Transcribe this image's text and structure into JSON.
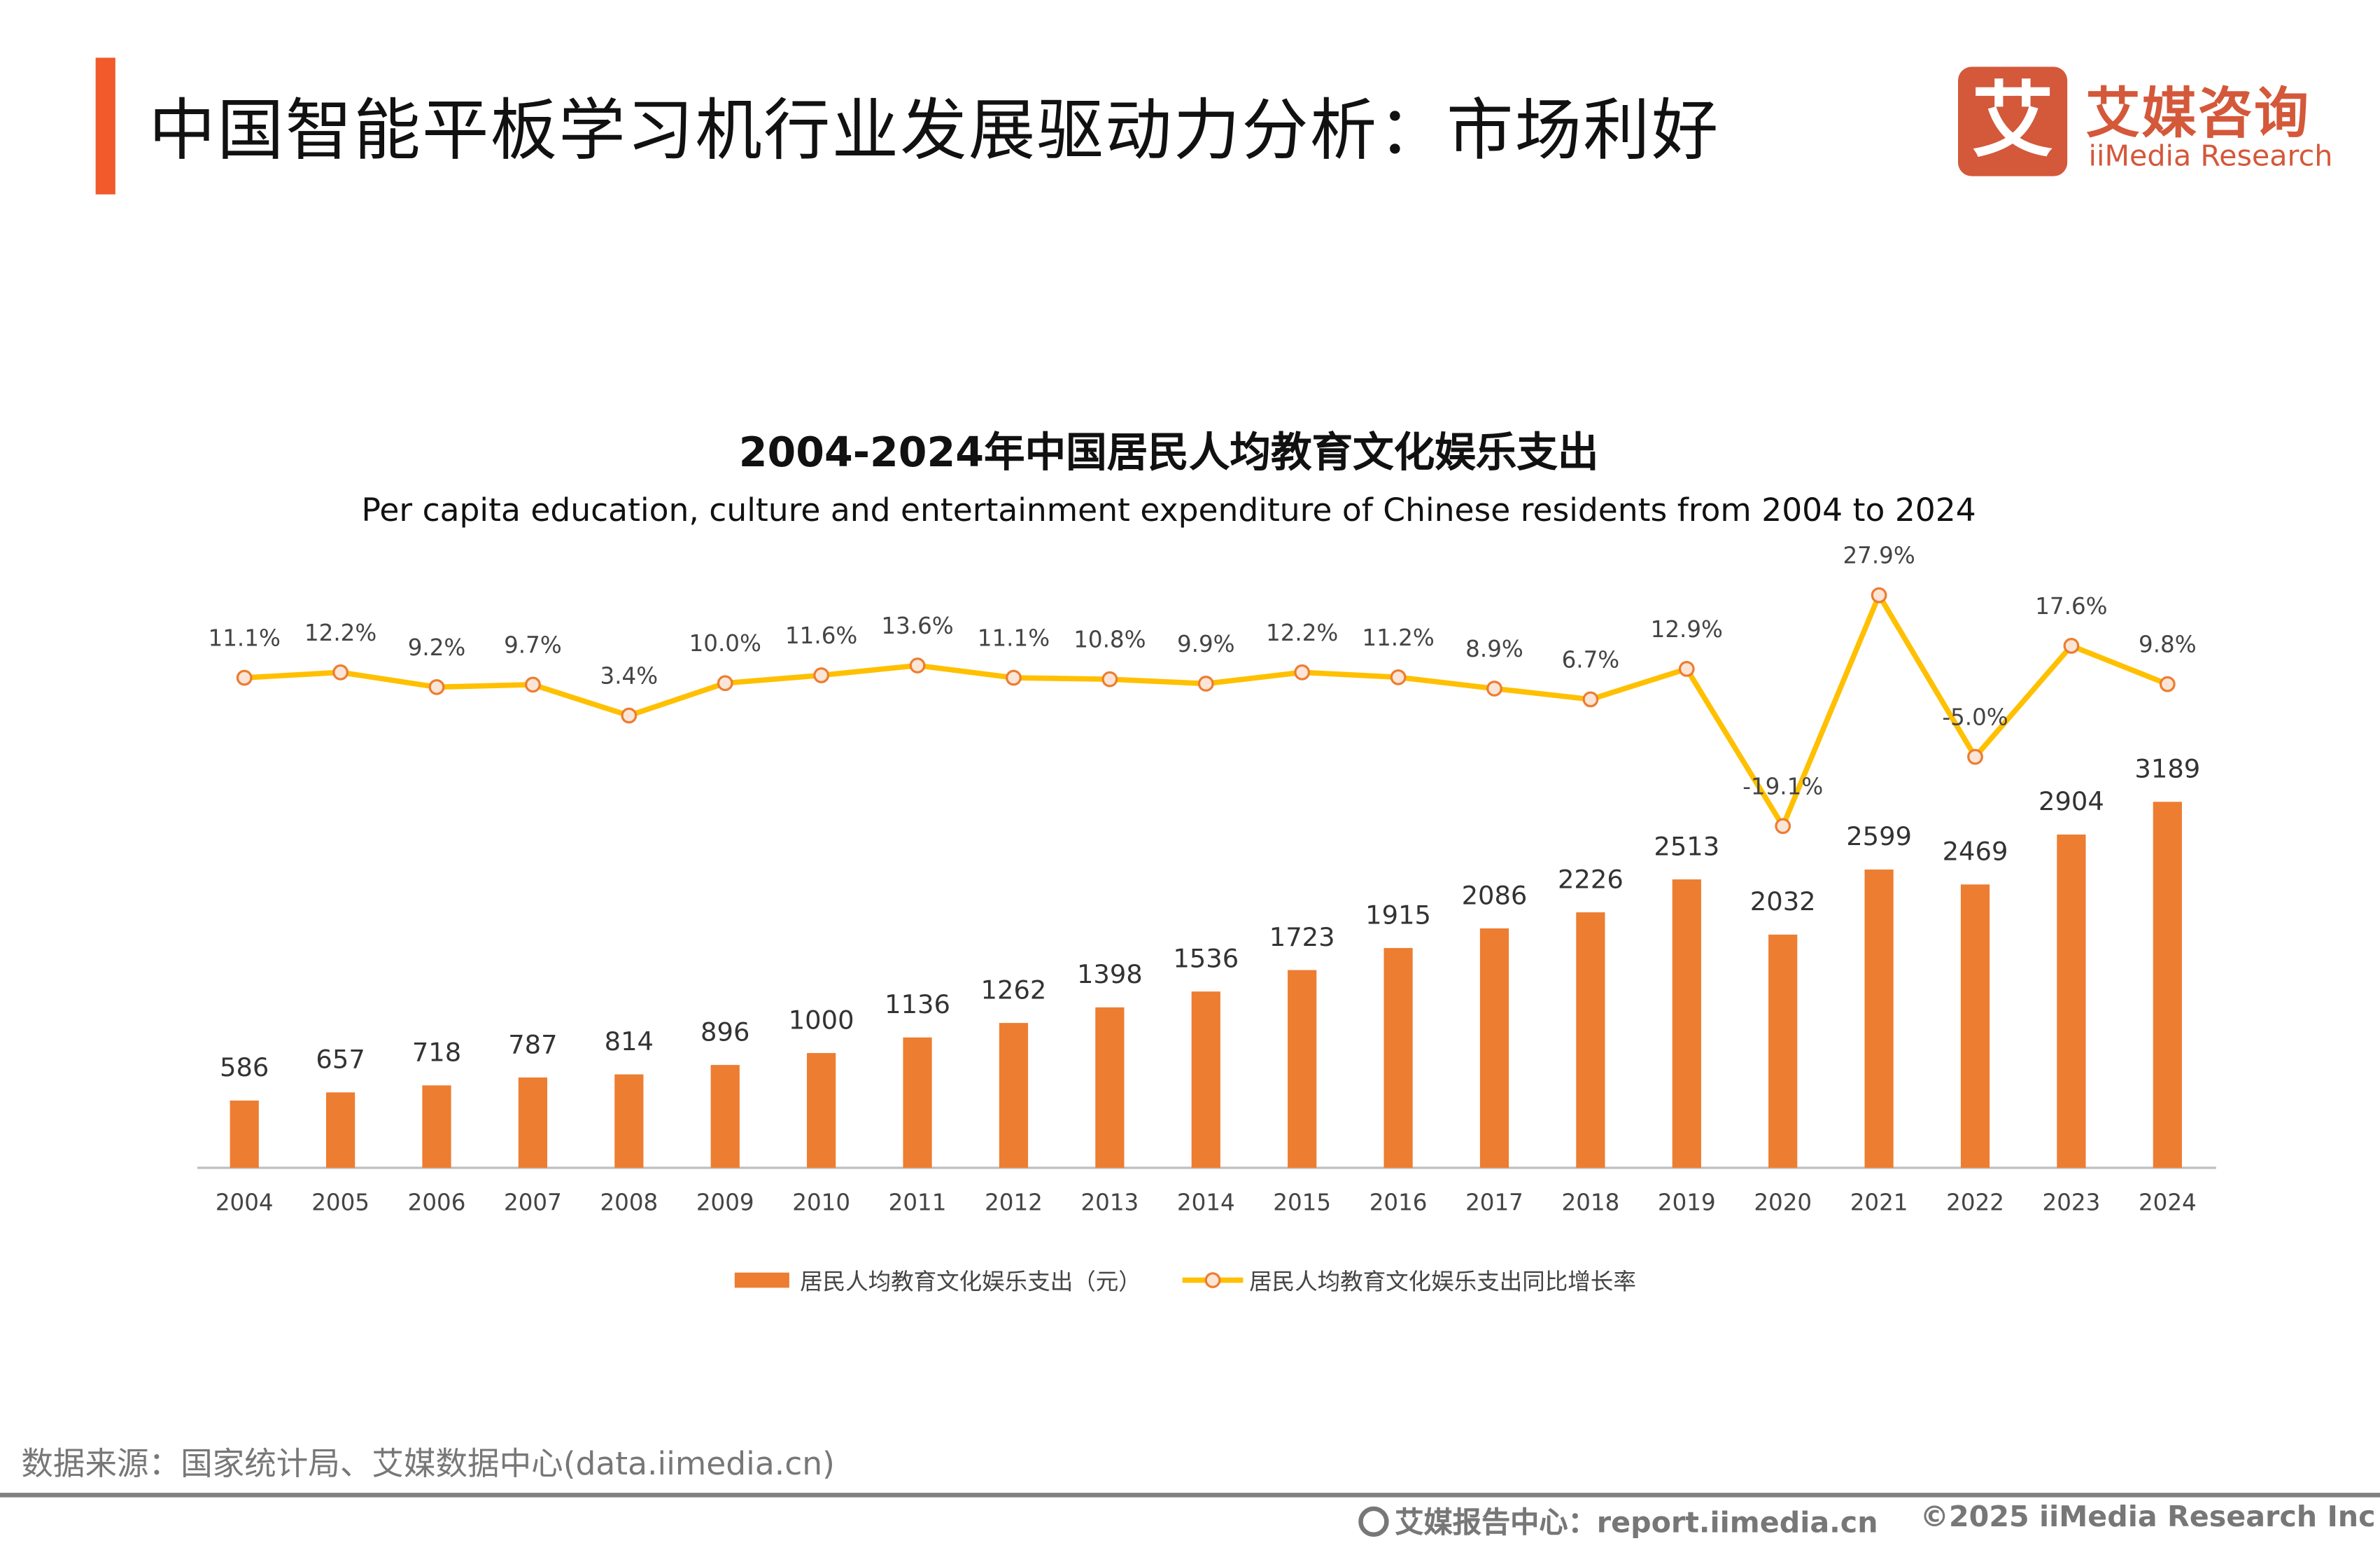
{
  "header": {
    "title": "中国智能平板学习机行业发展驱动力分析：市场利好",
    "accent_color": "#f15a2b"
  },
  "logo": {
    "mark": "艾",
    "cn": "艾媒咨询",
    "en": "iiMedia Research",
    "color": "#d4583a"
  },
  "chart_data": {
    "type": "bar+line",
    "title": "2004-2024年中国居民人均教育文化娱乐支出",
    "subtitle": "Per capita education, culture and entertainment expenditure of Chinese residents from 2004 to 2024",
    "categories": [
      "2004",
      "2005",
      "2006",
      "2007",
      "2008",
      "2009",
      "2010",
      "2011",
      "2012",
      "2013",
      "2014",
      "2015",
      "2016",
      "2017",
      "2018",
      "2019",
      "2020",
      "2021",
      "2022",
      "2023",
      "2024"
    ],
    "series": [
      {
        "name": "居民人均教育文化娱乐支出（元）",
        "type": "bar",
        "color": "#ed7d31",
        "values": [
          586,
          657,
          718,
          787,
          814,
          896,
          1000,
          1136,
          1262,
          1398,
          1536,
          1723,
          1915,
          2086,
          2226,
          2513,
          2032,
          2599,
          2469,
          2904,
          3189
        ]
      },
      {
        "name": "居民人均教育文化娱乐支出同比增长率",
        "type": "line",
        "color": "#ffc000",
        "marker_fill": "#fbe5d6",
        "marker_stroke": "#ed7d31",
        "values": [
          11.1,
          12.2,
          9.2,
          9.7,
          3.4,
          10.0,
          11.6,
          13.6,
          11.1,
          10.8,
          9.9,
          12.2,
          11.2,
          8.9,
          6.7,
          12.9,
          -19.1,
          27.9,
          -5.0,
          17.6,
          9.8
        ],
        "labels": [
          "11.1%",
          "12.2%",
          "9.2%",
          "9.7%",
          "3.4%",
          "10.0%",
          "11.6%",
          "13.6%",
          "11.1%",
          "10.8%",
          "9.9%",
          "12.2%",
          "11.2%",
          "8.9%",
          "6.7%",
          "12.9%",
          "-19.1%",
          "27.9%",
          "-5.0%",
          "17.6%",
          "9.8%"
        ]
      }
    ],
    "legend": "bottom",
    "grid": false
  },
  "source": "数据来源：国家统计局、艾媒数据中心(data.iimedia.cn)",
  "footer": {
    "report": "艾媒报告中心：report.iimedia.cn",
    "copyright": "©2025  iiMedia Research  Inc"
  }
}
